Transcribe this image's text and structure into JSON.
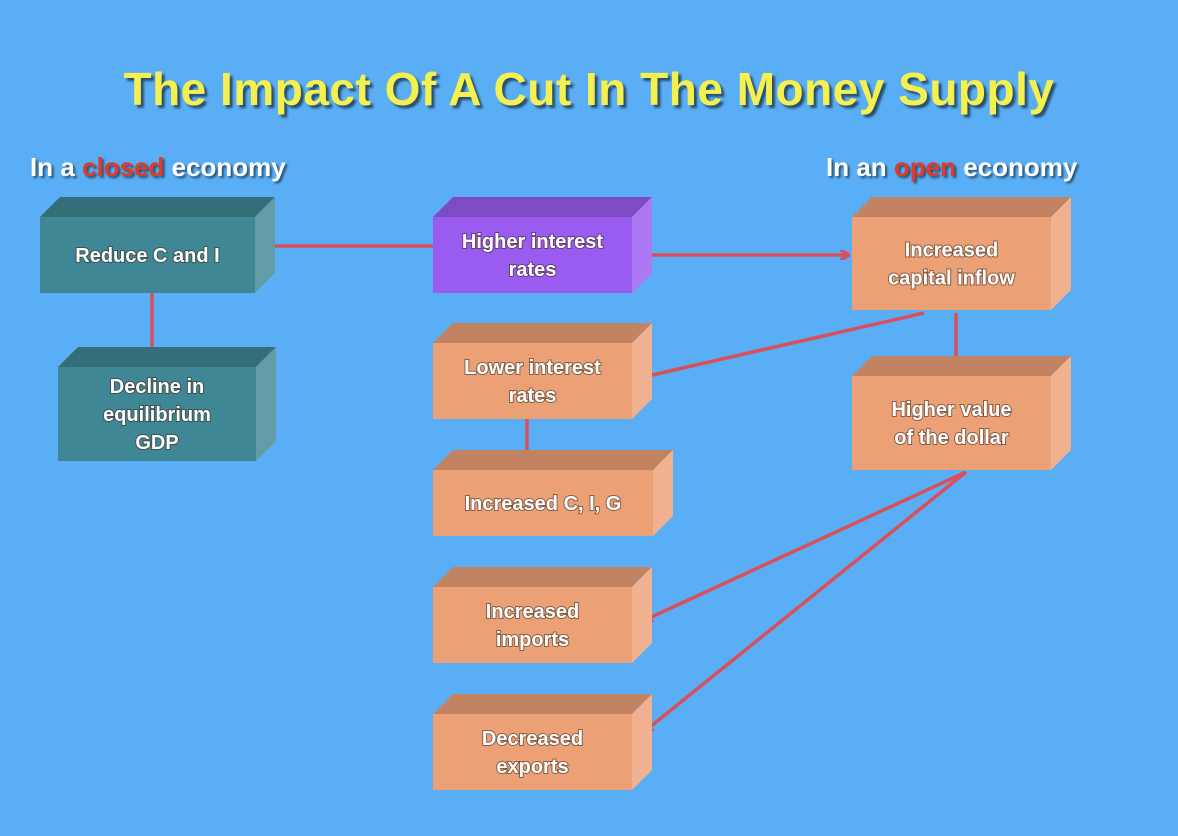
{
  "title": "The Impact Of A Cut In The Money Supply",
  "left_heading": {
    "prefix": "In a ",
    "accent": "closed",
    "suffix": " economy"
  },
  "right_heading": {
    "prefix": "In an ",
    "accent": "open",
    "suffix": " economy"
  },
  "colors": {
    "background": "#5aaef5",
    "title": "#f4f050",
    "accent": "#e03a2a",
    "arrow": "#d9505a",
    "teal_box": "#3f8794",
    "purple_box": "#9a5cf0",
    "orange_box": "#eba076"
  },
  "boxes": {
    "reduce_c_i": {
      "lines": [
        "Reduce C and I"
      ]
    },
    "decline_gdp": {
      "lines": [
        "Decline in",
        "equilibrium",
        "GDP"
      ]
    },
    "higher_rates": {
      "lines": [
        "Higher interest",
        "rates"
      ]
    },
    "capital_inflow": {
      "lines": [
        "Increased",
        "capital inflow"
      ]
    },
    "lower_rates": {
      "lines": [
        "Lower interest",
        "rates"
      ]
    },
    "increased_cig": {
      "lines": [
        "Increased C, I, G"
      ]
    },
    "higher_dollar": {
      "lines": [
        "Higher value",
        "of the dollar"
      ]
    },
    "increased_imports": {
      "lines": [
        "Increased",
        "imports"
      ]
    },
    "decreased_exports": {
      "lines": [
        "Decreased",
        "exports"
      ]
    }
  }
}
